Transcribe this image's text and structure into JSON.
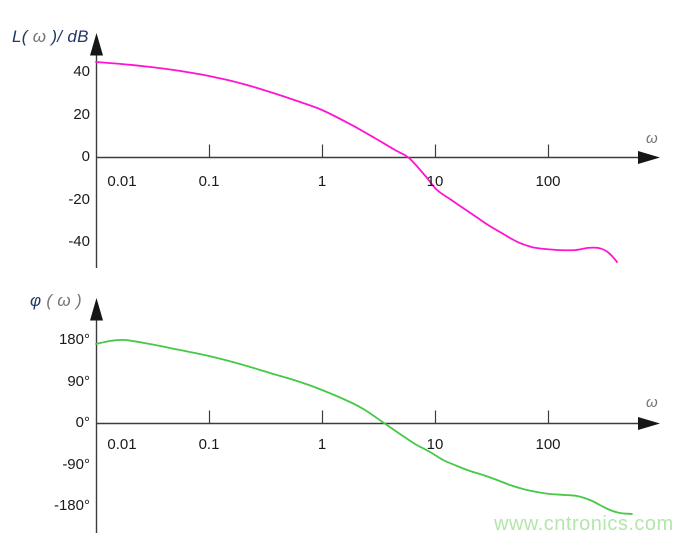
{
  "watermark": {
    "text": "www.cntronics.com",
    "color": "#b4e6ac"
  },
  "colors": {
    "axis": "#3c3c3c",
    "arrow": "#161616",
    "tick_label": "#1b1b1b",
    "title_dark": "#1f3864",
    "title_gray": "#757575",
    "magnitude_curve": "#ff14d0",
    "phase_curve": "#47c847",
    "watermark": "#b4e6ac"
  },
  "chart_data": [
    {
      "type": "line",
      "name": "magnitude",
      "title": "L(ω)/ dB",
      "title_parts": [
        {
          "text": "L(",
          "tone": "dark"
        },
        {
          "text": " ω ",
          "tone": "gray"
        },
        {
          "text": ")/ dB",
          "tone": "dark"
        }
      ],
      "xlabel": "ω",
      "ylabel": "L(ω)/dB",
      "x_scale": "log",
      "xlim": [
        0.01,
        650
      ],
      "ylim": [
        -52,
        48
      ],
      "grid": false,
      "legend": "none",
      "x_ticks": [
        {
          "label": "0.01",
          "w": 0.01,
          "tick": false,
          "dx": 26
        },
        {
          "label": "0.1",
          "w": 0.1,
          "tick": true,
          "dx": 0
        },
        {
          "label": "1",
          "w": 1,
          "tick": true,
          "dx": 0
        },
        {
          "label": "10",
          "w": 10,
          "tick": true,
          "dx": 0
        },
        {
          "label": "100",
          "w": 100,
          "tick": true,
          "dx": 0
        }
      ],
      "y_ticks": [
        {
          "label": "40",
          "v": 40
        },
        {
          "label": "20",
          "v": 20
        },
        {
          "label": "0",
          "v": 0
        },
        {
          "label": "-20",
          "v": -20
        },
        {
          "label": "-40",
          "v": -40
        }
      ],
      "series": [
        {
          "name": "L(ω)",
          "color_key": "magnitude_curve",
          "points": [
            [
              0.01,
              44.7
            ],
            [
              0.0163,
              43.8
            ],
            [
              0.03,
              42.4
            ],
            [
              0.055,
              40.5
            ],
            [
              0.1,
              38.1
            ],
            [
              0.188,
              34.8
            ],
            [
              0.347,
              30.6
            ],
            [
              0.64,
              25.9
            ],
            [
              1,
              22.1
            ],
            [
              1.77,
              15.5
            ],
            [
              2.94,
              8.9
            ],
            [
              4.43,
              3.3
            ],
            [
              5.9,
              -0.5
            ],
            [
              8.2,
              -8.9
            ],
            [
              10.4,
              -15.5
            ],
            [
              13.6,
              -19.8
            ],
            [
              17.7,
              -24.0
            ],
            [
              22.6,
              -27.8
            ],
            [
              29.5,
              -32.0
            ],
            [
              37.6,
              -35.3
            ],
            [
              46.1,
              -38.1
            ],
            [
              56.5,
              -40.5
            ],
            [
              72.1,
              -42.4
            ],
            [
              94,
              -43.3
            ],
            [
              127,
              -43.8
            ],
            [
              173,
              -43.8
            ],
            [
              226,
              -42.8
            ],
            [
              277,
              -42.8
            ],
            [
              326,
              -44.2
            ],
            [
              376,
              -47.1
            ],
            [
              408,
              -49.4
            ]
          ]
        }
      ]
    },
    {
      "type": "line",
      "name": "phase",
      "title": "φ ( ω )",
      "title_parts": [
        {
          "text": "φ ",
          "tone": "dark"
        },
        {
          "text": "( ",
          "tone": "gray"
        },
        {
          "text": "ω",
          "tone": "gray"
        },
        {
          "text": " )",
          "tone": "gray"
        }
      ],
      "xlabel": "ω",
      "ylabel": "φ(ω)",
      "x_scale": "log",
      "xlim": [
        0.01,
        650
      ],
      "ylim": [
        -200,
        195
      ],
      "grid": false,
      "legend": "none",
      "x_ticks": [
        {
          "label": "0.01",
          "w": 0.01,
          "tick": false,
          "dx": 26
        },
        {
          "label": "0.1",
          "w": 0.1,
          "tick": true,
          "dx": 0
        },
        {
          "label": "1",
          "w": 1,
          "tick": true,
          "dx": 0
        },
        {
          "label": "10",
          "w": 10,
          "tick": true,
          "dx": 0
        },
        {
          "label": "100",
          "w": 100,
          "tick": true,
          "dx": 0
        }
      ],
      "y_ticks": [
        {
          "label": "180°",
          "v": 180
        },
        {
          "label": "90°",
          "v": 90
        },
        {
          "label": "0°",
          "v": 0
        },
        {
          "label": "-90°",
          "v": -90
        },
        {
          "label": "-180°",
          "v": -180
        }
      ],
      "series": [
        {
          "name": "φ(ω)",
          "color_key": "phase_curve",
          "points": [
            [
              0.01,
              171.3
            ],
            [
              0.0133,
              177.8
            ],
            [
              0.018,
              180.0
            ],
            [
              0.03,
              171.3
            ],
            [
              0.05,
              160.5
            ],
            [
              0.1,
              145.3
            ],
            [
              0.188,
              128.0
            ],
            [
              0.347,
              108.4
            ],
            [
              0.64,
              88.9
            ],
            [
              1,
              71.6
            ],
            [
              1.77,
              45.5
            ],
            [
              2.4,
              28.2
            ],
            [
              3.54,
              0.0
            ],
            [
              4.9,
              -23.9
            ],
            [
              6.65,
              -45.5
            ],
            [
              9.04,
              -62.9
            ],
            [
              11.8,
              -80.2
            ],
            [
              15.7,
              -93.3
            ],
            [
              20.4,
              -104.1
            ],
            [
              26.6,
              -112.8
            ],
            [
              35.4,
              -123.6
            ],
            [
              46.1,
              -134.5
            ],
            [
              60.1,
              -143.1
            ],
            [
              80,
              -149.7
            ],
            [
              104,
              -154.0
            ],
            [
              141,
              -156.1
            ],
            [
              181,
              -158.3
            ],
            [
              235,
              -167.0
            ],
            [
              288,
              -177.8
            ],
            [
              354,
              -188.7
            ],
            [
              434,
              -195.2
            ],
            [
              553,
              -197.3
            ]
          ]
        }
      ]
    }
  ]
}
